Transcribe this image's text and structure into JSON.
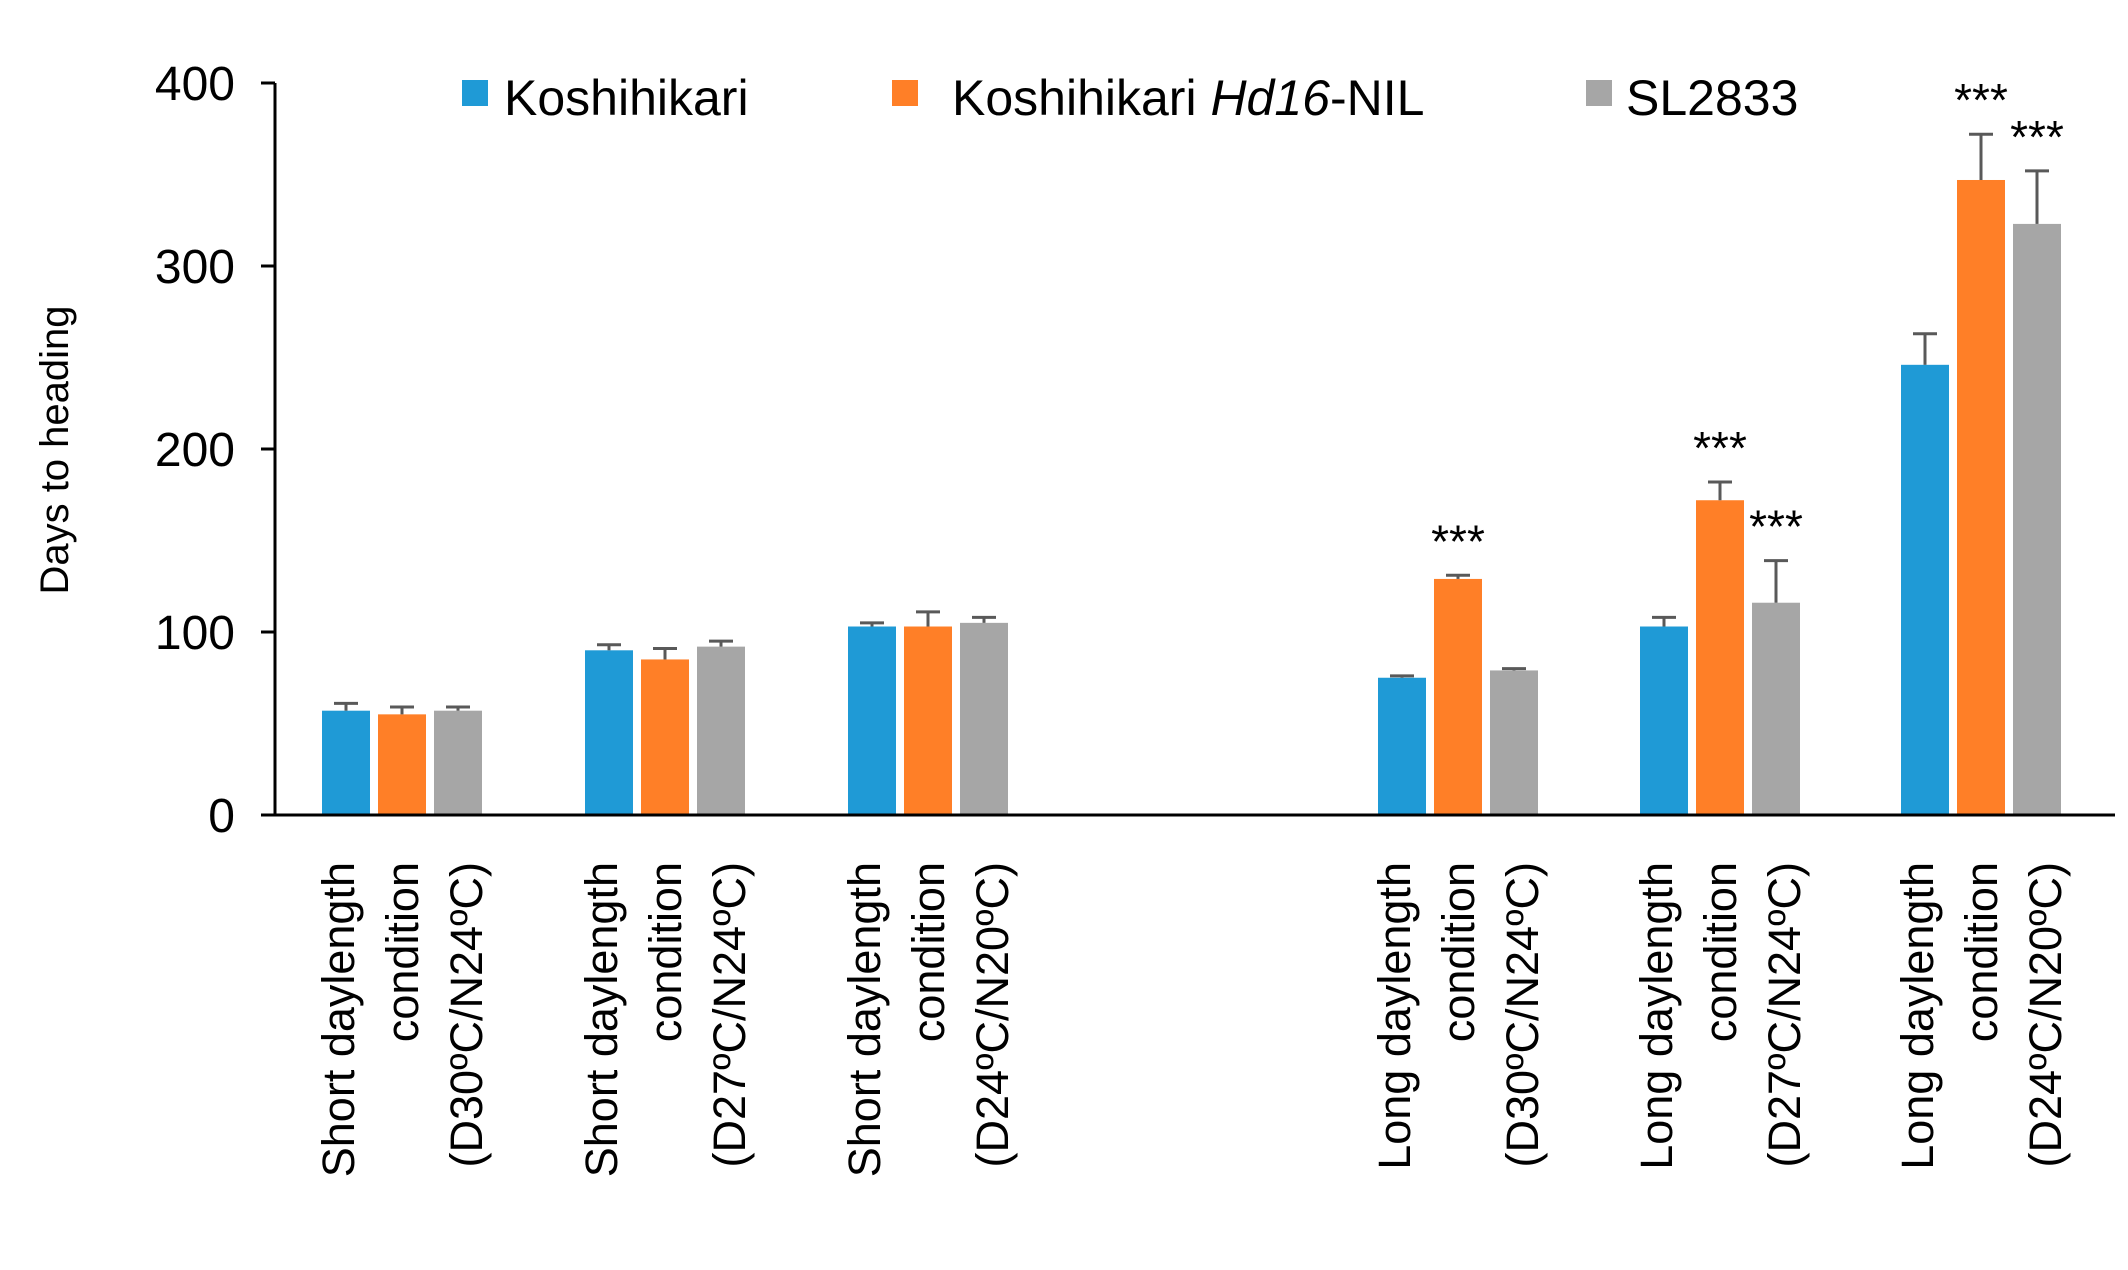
{
  "chart_data": {
    "type": "bar",
    "ylabel": "Days to heading",
    "ylim": [
      0,
      400
    ],
    "yticks": [
      0,
      100,
      200,
      300,
      400
    ],
    "grid": false,
    "legend_position": "top",
    "colors": {
      "Koshihikari": "#1f9ad6",
      "Koshihikari Hd16-NIL": "#ff7f27",
      "SL2833": "#a6a6a6"
    },
    "legend": [
      {
        "name": "Koshihikari",
        "text": "Koshihikari",
        "color": "#1f9ad6"
      },
      {
        "name": "Koshihikari Hd16-NIL",
        "text_a": "Koshihikari ",
        "text_italic": "Hd16",
        "text_b": "-NIL",
        "color": "#ff7f27"
      },
      {
        "name": "SL2833",
        "text": "SL2833",
        "color": "#a6a6a6"
      }
    ],
    "categories": [
      {
        "lines": [
          "Short daylength",
          "condition",
          "(D30ºC/N24ºC)"
        ]
      },
      {
        "lines": [
          "Short daylength",
          "condition",
          "(D27ºC/N24ºC)"
        ]
      },
      {
        "lines": [
          "Short daylength",
          "condition",
          "(D24ºC/N20ºC)"
        ]
      },
      {
        "lines": [
          "Long daylength",
          "condition",
          "(D30ºC/N24ºC)"
        ]
      },
      {
        "lines": [
          "Long daylength",
          "condition",
          "(D27ºC/N24ºC)"
        ]
      },
      {
        "lines": [
          "Long daylength",
          "condition",
          "(D24ºC/N20ºC)"
        ]
      }
    ],
    "series": [
      {
        "name": "Koshihikari",
        "color": "#1f9ad6",
        "values": [
          57,
          90,
          103,
          75,
          103,
          246
        ],
        "errors": [
          4,
          3,
          2,
          1,
          5,
          17
        ],
        "significance": [
          "",
          "",
          "",
          "",
          "",
          ""
        ]
      },
      {
        "name": "Koshihikari Hd16-NIL",
        "color": "#ff7f27",
        "values": [
          55,
          85,
          103,
          129,
          172,
          347
        ],
        "errors": [
          4,
          6,
          8,
          2,
          10,
          25
        ],
        "significance": [
          "",
          "",
          "",
          "***",
          "***",
          "***"
        ]
      },
      {
        "name": "SL2833",
        "color": "#a6a6a6",
        "values": [
          57,
          92,
          105,
          79,
          116,
          323
        ],
        "errors": [
          2,
          3,
          3,
          1,
          23,
          29
        ],
        "significance": [
          "",
          "",
          "",
          "",
          "***",
          "***"
        ]
      }
    ]
  }
}
